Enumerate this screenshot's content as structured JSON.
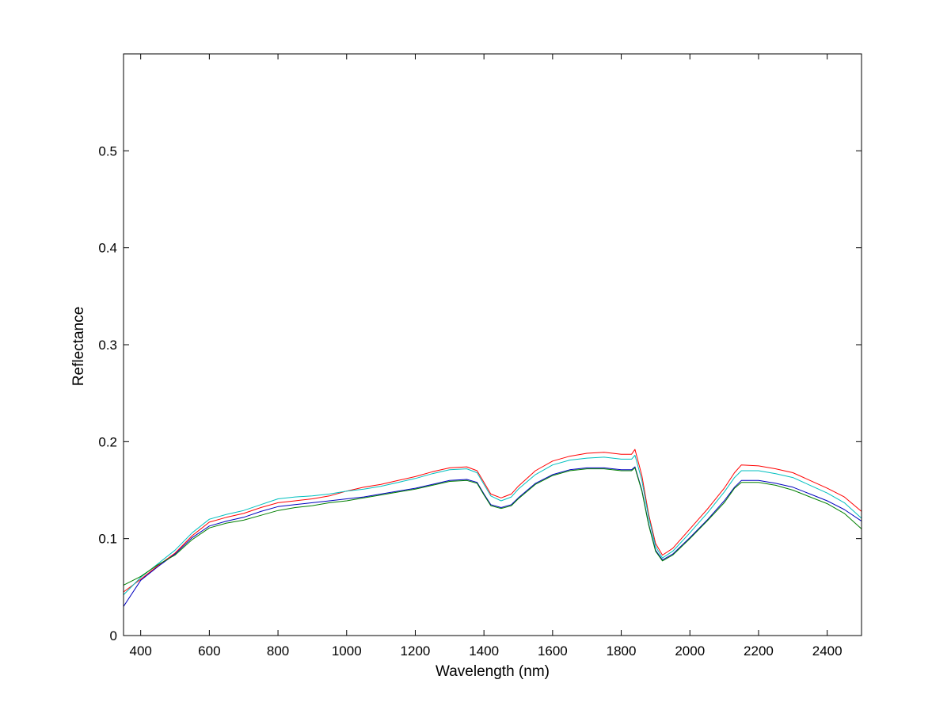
{
  "chart_data": {
    "type": "line",
    "title": "",
    "xlabel": "Wavelength (nm)",
    "ylabel": "Reflectance",
    "xlim": [
      350,
      2500
    ],
    "ylim": [
      0,
      0.6
    ],
    "xticks": [
      400,
      600,
      800,
      1000,
      1200,
      1400,
      1600,
      1800,
      2000,
      2200,
      2400
    ],
    "xtick_labels": [
      "400",
      "600",
      "800",
      "1000",
      "1200",
      "1400",
      "1600",
      "1800",
      "2000",
      "2200",
      "2400"
    ],
    "yticks": [
      0,
      0.1,
      0.2,
      0.3,
      0.4,
      0.5
    ],
    "ytick_labels": [
      "0",
      "0.1",
      "0.2",
      "0.3",
      "0.4",
      "0.5"
    ],
    "grid": false,
    "legend": "none",
    "series": [
      {
        "color": "#ff0000",
        "x": [
          350,
          400,
          450,
          500,
          550,
          600,
          650,
          700,
          750,
          800,
          850,
          900,
          950,
          1000,
          1050,
          1100,
          1150,
          1200,
          1250,
          1300,
          1350,
          1380,
          1400,
          1420,
          1450,
          1480,
          1500,
          1550,
          1600,
          1650,
          1700,
          1750,
          1800,
          1830,
          1840,
          1860,
          1880,
          1900,
          1920,
          1950,
          2000,
          2050,
          2100,
          2130,
          2150,
          2200,
          2250,
          2300,
          2350,
          2400,
          2450,
          2500
        ],
        "y": [
          0.045,
          0.058,
          0.072,
          0.085,
          0.103,
          0.117,
          0.122,
          0.126,
          0.132,
          0.137,
          0.139,
          0.141,
          0.144,
          0.149,
          0.153,
          0.156,
          0.16,
          0.164,
          0.169,
          0.173,
          0.174,
          0.17,
          0.158,
          0.146,
          0.142,
          0.146,
          0.154,
          0.17,
          0.18,
          0.185,
          0.188,
          0.189,
          0.187,
          0.187,
          0.192,
          0.165,
          0.125,
          0.095,
          0.083,
          0.09,
          0.11,
          0.13,
          0.152,
          0.168,
          0.176,
          0.175,
          0.172,
          0.168,
          0.16,
          0.152,
          0.143,
          0.128
        ]
      },
      {
        "color": "#00bfbf",
        "x": [
          350,
          400,
          450,
          500,
          550,
          600,
          650,
          700,
          750,
          800,
          850,
          900,
          950,
          1000,
          1050,
          1100,
          1150,
          1200,
          1250,
          1300,
          1350,
          1380,
          1400,
          1420,
          1450,
          1480,
          1500,
          1550,
          1600,
          1650,
          1700,
          1750,
          1800,
          1830,
          1840,
          1860,
          1880,
          1900,
          1920,
          1950,
          2000,
          2050,
          2100,
          2130,
          2150,
          2200,
          2250,
          2300,
          2350,
          2400,
          2450,
          2500
        ],
        "y": [
          0.042,
          0.06,
          0.074,
          0.088,
          0.106,
          0.12,
          0.125,
          0.129,
          0.135,
          0.141,
          0.143,
          0.144,
          0.146,
          0.149,
          0.151,
          0.154,
          0.158,
          0.162,
          0.167,
          0.171,
          0.172,
          0.168,
          0.156,
          0.144,
          0.139,
          0.143,
          0.151,
          0.166,
          0.176,
          0.181,
          0.183,
          0.184,
          0.182,
          0.182,
          0.186,
          0.16,
          0.122,
          0.092,
          0.08,
          0.087,
          0.106,
          0.126,
          0.148,
          0.163,
          0.17,
          0.17,
          0.167,
          0.163,
          0.155,
          0.147,
          0.137,
          0.121
        ]
      },
      {
        "color": "#0000bf",
        "x": [
          350,
          400,
          450,
          500,
          550,
          600,
          650,
          700,
          750,
          800,
          850,
          900,
          950,
          1000,
          1050,
          1100,
          1150,
          1200,
          1250,
          1300,
          1350,
          1380,
          1400,
          1420,
          1450,
          1480,
          1500,
          1550,
          1600,
          1650,
          1700,
          1750,
          1800,
          1830,
          1840,
          1860,
          1880,
          1900,
          1920,
          1950,
          2000,
          2050,
          2100,
          2130,
          2150,
          2200,
          2250,
          2300,
          2350,
          2400,
          2450,
          2500
        ],
        "y": [
          0.03,
          0.057,
          0.071,
          0.084,
          0.101,
          0.113,
          0.118,
          0.122,
          0.128,
          0.133,
          0.135,
          0.137,
          0.139,
          0.141,
          0.143,
          0.146,
          0.149,
          0.152,
          0.156,
          0.16,
          0.161,
          0.158,
          0.146,
          0.135,
          0.132,
          0.135,
          0.142,
          0.157,
          0.166,
          0.171,
          0.173,
          0.173,
          0.171,
          0.171,
          0.174,
          0.15,
          0.115,
          0.088,
          0.078,
          0.084,
          0.101,
          0.119,
          0.139,
          0.153,
          0.16,
          0.16,
          0.157,
          0.153,
          0.146,
          0.139,
          0.13,
          0.118
        ]
      },
      {
        "color": "#007f00",
        "x": [
          350,
          400,
          450,
          500,
          550,
          600,
          650,
          700,
          750,
          800,
          850,
          900,
          950,
          1000,
          1050,
          1100,
          1150,
          1200,
          1250,
          1300,
          1350,
          1380,
          1400,
          1420,
          1450,
          1480,
          1500,
          1550,
          1600,
          1650,
          1700,
          1750,
          1800,
          1830,
          1840,
          1860,
          1880,
          1900,
          1920,
          1950,
          2000,
          2050,
          2100,
          2130,
          2150,
          2200,
          2250,
          2300,
          2350,
          2400,
          2450,
          2500
        ],
        "y": [
          0.052,
          0.061,
          0.073,
          0.083,
          0.099,
          0.111,
          0.116,
          0.119,
          0.124,
          0.129,
          0.132,
          0.134,
          0.137,
          0.139,
          0.142,
          0.145,
          0.148,
          0.151,
          0.155,
          0.159,
          0.16,
          0.157,
          0.145,
          0.134,
          0.131,
          0.134,
          0.141,
          0.156,
          0.165,
          0.17,
          0.172,
          0.172,
          0.17,
          0.17,
          0.173,
          0.149,
          0.114,
          0.087,
          0.077,
          0.083,
          0.1,
          0.118,
          0.137,
          0.152,
          0.158,
          0.158,
          0.155,
          0.15,
          0.143,
          0.136,
          0.126,
          0.11
        ]
      }
    ]
  }
}
